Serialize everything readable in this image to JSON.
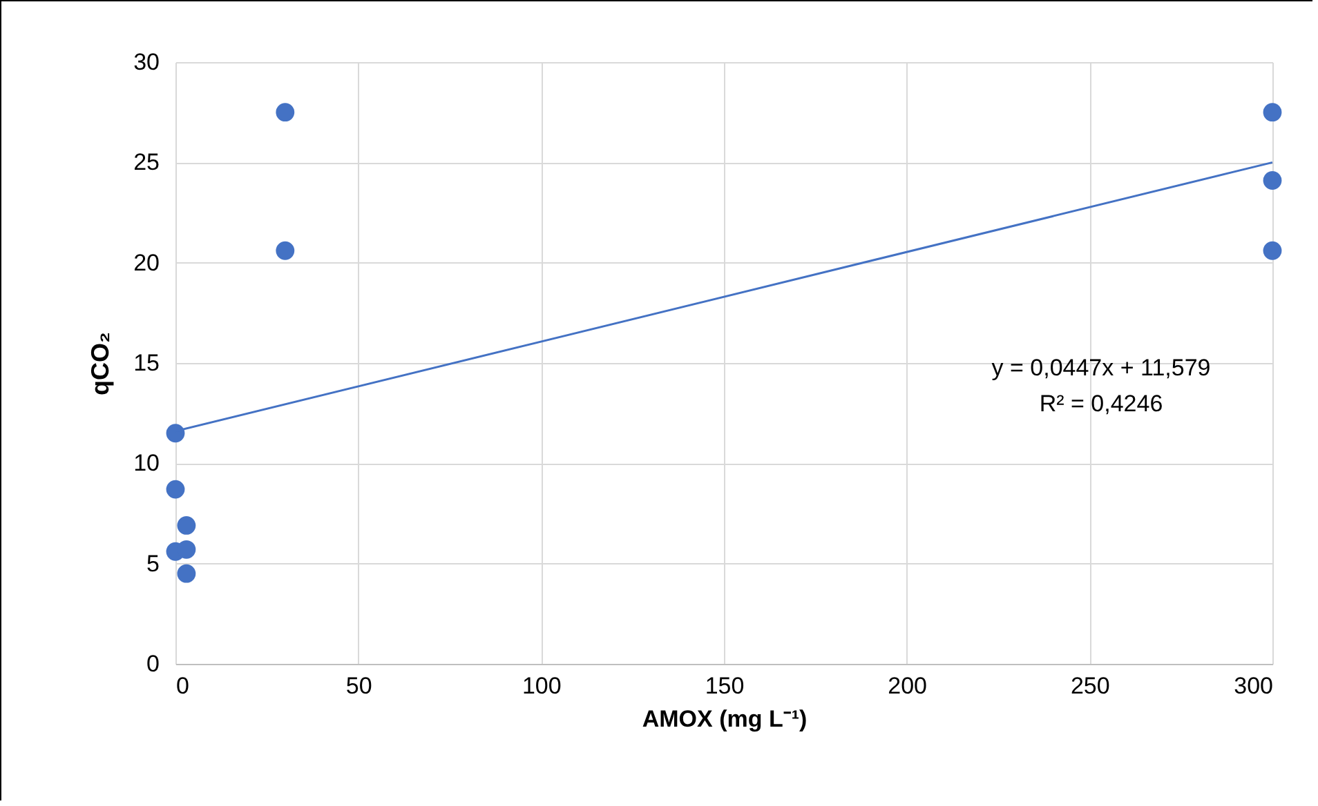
{
  "chart_data": {
    "type": "scatter",
    "xlabel": "AMOX (mg L⁻¹)",
    "ylabel": "qCO₂",
    "xlim": [
      0,
      300
    ],
    "xticks": [
      0,
      50,
      100,
      150,
      200,
      250,
      300
    ],
    "ylim": [
      0,
      30
    ],
    "yticks": [
      0,
      5,
      10,
      15,
      20,
      25,
      30
    ],
    "grid": true,
    "series": [
      {
        "color": "#4472c4",
        "marker": "circle",
        "x": [
          0,
          0,
          0,
          3,
          3,
          3,
          30,
          30,
          300,
          300,
          300
        ],
        "values": [
          11.5,
          8.7,
          5.6,
          6.9,
          5.7,
          4.5,
          27.5,
          20.6,
          27.5,
          24.1,
          20.6
        ]
      },
      {
        "type": "line",
        "color": "#4472c4",
        "x": [
          0,
          300
        ],
        "values": [
          11.6,
          25.0
        ]
      }
    ],
    "annotations": [
      "y = 0,0447x + 11,579",
      "R² = 0,4246"
    ]
  }
}
